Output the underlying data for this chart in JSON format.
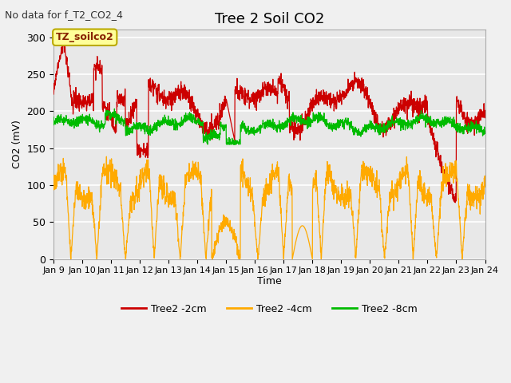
{
  "title": "Tree 2 Soil CO2",
  "subtitle": "No data for f_T2_CO2_4",
  "ylabel": "CO2 (mV)",
  "xlabel": "Time",
  "x_tick_labels": [
    "Jan 9",
    "Jan 10",
    "Jan 11",
    "Jan 12",
    "Jan 13",
    "Jan 14",
    "Jan 15",
    "Jan 16",
    "Jan 17",
    "Jan 18",
    "Jan 19",
    "Jan 20",
    "Jan 21",
    "Jan 22",
    "Jan 23",
    "Jan 24"
  ],
  "ylim": [
    0,
    310
  ],
  "legend_labels": [
    "Tree2 -2cm",
    "Tree2 -4cm",
    "Tree2 -8cm"
  ],
  "legend_colors": [
    "#cc0000",
    "#ffaa00",
    "#00cc00"
  ],
  "bg_color": "#e8e8e8",
  "plot_bg_color": "#e8e8e8",
  "annotation_text": "TZ_soilco2",
  "annotation_bg": "#ffff99",
  "annotation_border": "#bbaa00",
  "title_fontsize": 13,
  "subtitle_fontsize": 9,
  "tick_fontsize": 8,
  "ylabel_fontsize": 9,
  "xlabel_fontsize": 9,
  "legend_fontsize": 9
}
